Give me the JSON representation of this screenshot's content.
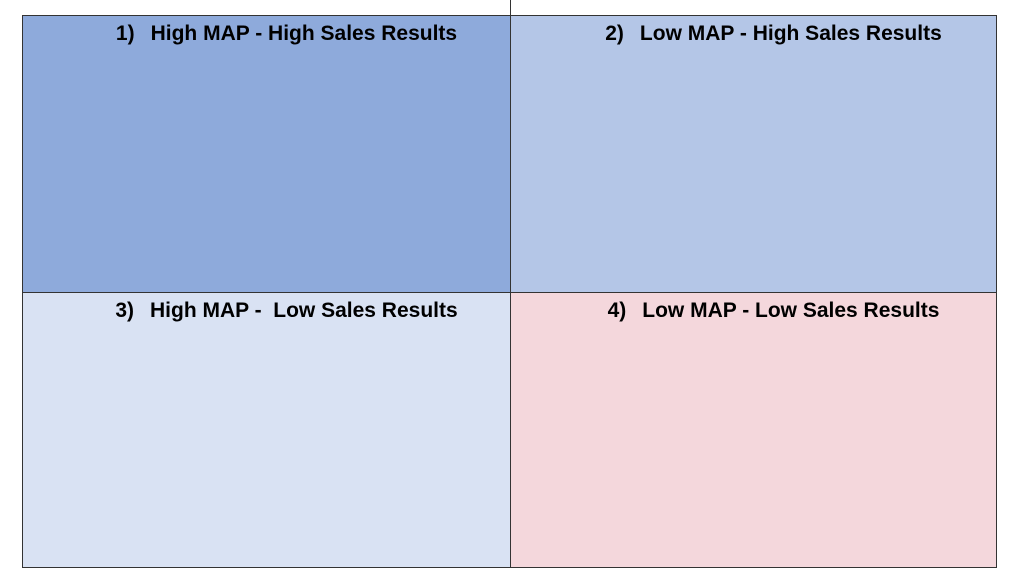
{
  "quadrants": [
    {
      "number": "1)",
      "title": "High MAP - High Sales Results",
      "color": "#8eaadb"
    },
    {
      "number": "2)",
      "title": "Low MAP - High Sales Results",
      "color": "#b4c6e7"
    },
    {
      "number": "3)",
      "title": "High MAP -  Low Sales Results",
      "color": "#d9e2f3"
    },
    {
      "number": "4)",
      "title": "Low MAP - Low Sales Results",
      "color": "#f4d7dc"
    }
  ]
}
